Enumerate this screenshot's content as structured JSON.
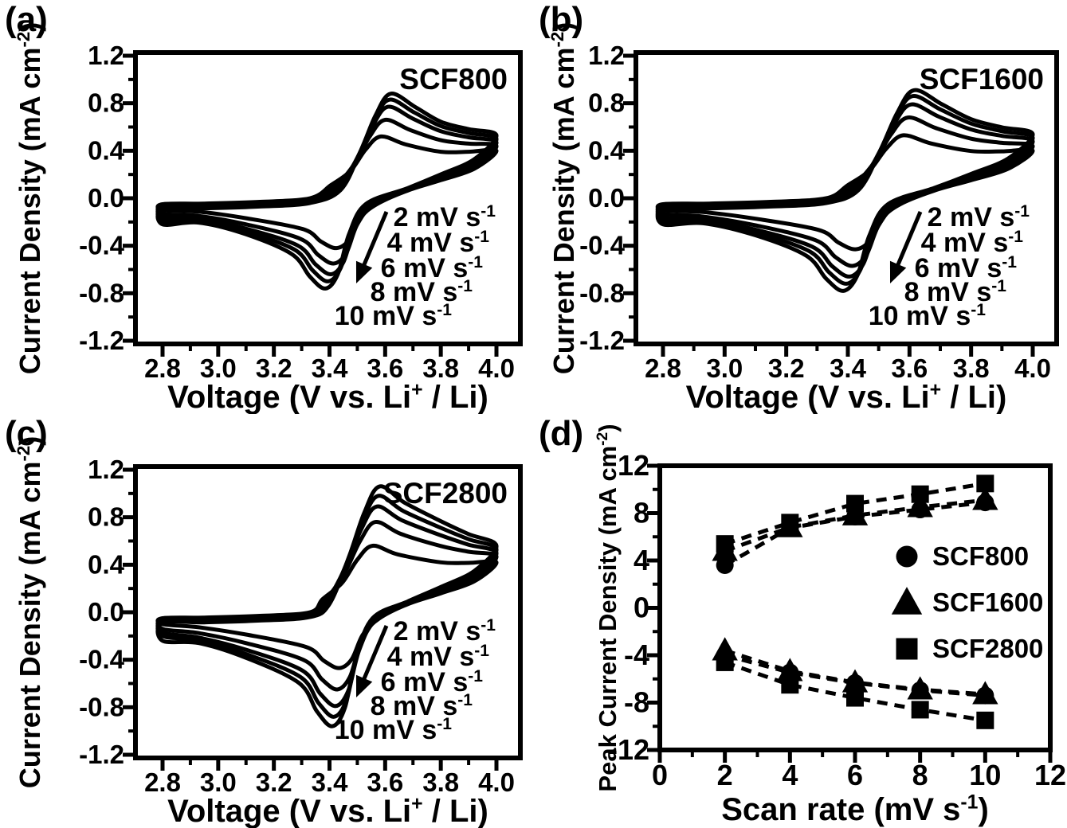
{
  "figure": {
    "background": "#ffffff",
    "ink": "#000000",
    "description": "Cyclic voltammetry of SCF samples and peak current density versus scan rate"
  },
  "chart_data": [
    {
      "type": "line",
      "subtype": "cyclic-voltammetry",
      "panel": "a",
      "panel_label": "(a)",
      "sample": "SCF800",
      "xlabel": "Voltage (V vs. Li^+^ / Li)",
      "ylabel": "Current Density (mA cm^-2^)",
      "xlim": [
        2.8,
        4.0
      ],
      "ylim": [
        -1.2,
        1.2
      ],
      "xticks": [
        2.8,
        3.0,
        3.2,
        3.4,
        3.6,
        3.8,
        4.0
      ],
      "yticks": [
        1.2,
        0.8,
        0.4,
        0.0,
        -0.4,
        -0.8,
        -1.2
      ],
      "grid": false,
      "scan_rates_mV_s": [
        2,
        4,
        6,
        8,
        10
      ],
      "scan_rate_labels": [
        "2 mV s^-1^",
        "4 mV s^-1^",
        "6 mV s^-1^",
        "8 mV s^-1^",
        "10 mV s^-1^"
      ],
      "curves": [
        {
          "scan_rate_mV_s": 2,
          "anodic_peak_V": 3.585,
          "anodic_peak_mA_cm2": 0.52,
          "cathodic_peak_V": 3.425,
          "cathodic_peak_mA_cm2": -0.42,
          "start_mA_cm2": -0.05,
          "end_mA_cm2": 0.4,
          "return_end_mA_cm2": -0.1
        },
        {
          "scan_rate_mV_s": 4,
          "anodic_peak_V": 3.6,
          "anodic_peak_mA_cm2": 0.66,
          "cathodic_peak_V": 3.415,
          "cathodic_peak_mA_cm2": -0.55,
          "start_mA_cm2": -0.06,
          "end_mA_cm2": 0.44,
          "return_end_mA_cm2": -0.13
        },
        {
          "scan_rate_mV_s": 6,
          "anodic_peak_V": 3.61,
          "anodic_peak_mA_cm2": 0.77,
          "cathodic_peak_V": 3.405,
          "cathodic_peak_mA_cm2": -0.64,
          "start_mA_cm2": -0.07,
          "end_mA_cm2": 0.47,
          "return_end_mA_cm2": -0.16
        },
        {
          "scan_rate_mV_s": 8,
          "anodic_peak_V": 3.615,
          "anodic_peak_mA_cm2": 0.83,
          "cathodic_peak_V": 3.395,
          "cathodic_peak_mA_cm2": -0.7,
          "start_mA_cm2": -0.08,
          "end_mA_cm2": 0.5,
          "return_end_mA_cm2": -0.19
        },
        {
          "scan_rate_mV_s": 10,
          "anodic_peak_V": 3.62,
          "anodic_peak_mA_cm2": 0.88,
          "cathodic_peak_V": 3.385,
          "cathodic_peak_mA_cm2": -0.76,
          "start_mA_cm2": -0.09,
          "end_mA_cm2": 0.53,
          "return_end_mA_cm2": -0.22
        }
      ]
    },
    {
      "type": "line",
      "subtype": "cyclic-voltammetry",
      "panel": "b",
      "panel_label": "(b)",
      "sample": "SCF1600",
      "xlabel": "Voltage (V vs. Li^+^ / Li)",
      "ylabel": "Current Density (mA cm^-2^)",
      "xlim": [
        2.8,
        4.0
      ],
      "ylim": [
        -1.2,
        1.2
      ],
      "xticks": [
        2.8,
        3.0,
        3.2,
        3.4,
        3.6,
        3.8,
        4.0
      ],
      "yticks": [
        1.2,
        0.8,
        0.4,
        0.0,
        -0.4,
        -0.8,
        -1.2
      ],
      "grid": false,
      "scan_rates_mV_s": [
        2,
        4,
        6,
        8,
        10
      ],
      "scan_rate_labels": [
        "2 mV s^-1^",
        "4 mV s^-1^",
        "6 mV s^-1^",
        "8 mV s^-1^",
        "10 mV s^-1^"
      ],
      "curves": [
        {
          "scan_rate_mV_s": 2,
          "anodic_peak_V": 3.58,
          "anodic_peak_mA_cm2": 0.53,
          "cathodic_peak_V": 3.425,
          "cathodic_peak_mA_cm2": -0.43,
          "start_mA_cm2": -0.05,
          "end_mA_cm2": 0.4,
          "return_end_mA_cm2": -0.1
        },
        {
          "scan_rate_mV_s": 4,
          "anodic_peak_V": 3.595,
          "anodic_peak_mA_cm2": 0.68,
          "cathodic_peak_V": 3.415,
          "cathodic_peak_mA_cm2": -0.57,
          "start_mA_cm2": -0.06,
          "end_mA_cm2": 0.44,
          "return_end_mA_cm2": -0.13
        },
        {
          "scan_rate_mV_s": 6,
          "anodic_peak_V": 3.605,
          "anodic_peak_mA_cm2": 0.79,
          "cathodic_peak_V": 3.405,
          "cathodic_peak_mA_cm2": -0.66,
          "start_mA_cm2": -0.07,
          "end_mA_cm2": 0.48,
          "return_end_mA_cm2": -0.16
        },
        {
          "scan_rate_mV_s": 8,
          "anodic_peak_V": 3.61,
          "anodic_peak_mA_cm2": 0.86,
          "cathodic_peak_V": 3.395,
          "cathodic_peak_mA_cm2": -0.72,
          "start_mA_cm2": -0.08,
          "end_mA_cm2": 0.51,
          "return_end_mA_cm2": -0.19
        },
        {
          "scan_rate_mV_s": 10,
          "anodic_peak_V": 3.615,
          "anodic_peak_mA_cm2": 0.91,
          "cathodic_peak_V": 3.385,
          "cathodic_peak_mA_cm2": -0.78,
          "start_mA_cm2": -0.09,
          "end_mA_cm2": 0.54,
          "return_end_mA_cm2": -0.22
        }
      ]
    },
    {
      "type": "line",
      "subtype": "cyclic-voltammetry",
      "panel": "c",
      "panel_label": "(c)",
      "sample": "SCF2800",
      "xlabel": "Voltage (V vs. Li^+^ / Li)",
      "ylabel": "Current Density (mA cm^-2^)",
      "xlim": [
        2.8,
        4.0
      ],
      "ylim": [
        -1.2,
        1.2
      ],
      "xticks": [
        2.8,
        3.0,
        3.2,
        3.4,
        3.6,
        3.8,
        4.0
      ],
      "yticks": [
        1.2,
        0.8,
        0.4,
        0.0,
        -0.4,
        -0.8,
        -1.2
      ],
      "grid": false,
      "scan_rates_mV_s": [
        2,
        4,
        6,
        8,
        10
      ],
      "scan_rate_labels": [
        "2 mV s^-1^",
        "4 mV s^-1^",
        "6 mV s^-1^",
        "8 mV s^-1^",
        "10 mV s^-1^"
      ],
      "curves": [
        {
          "scan_rate_mV_s": 2,
          "anodic_peak_V": 3.555,
          "anodic_peak_mA_cm2": 0.56,
          "cathodic_peak_V": 3.435,
          "cathodic_peak_mA_cm2": -0.47,
          "start_mA_cm2": -0.05,
          "end_mA_cm2": 0.42,
          "return_end_mA_cm2": -0.1
        },
        {
          "scan_rate_mV_s": 4,
          "anodic_peak_V": 3.565,
          "anodic_peak_mA_cm2": 0.76,
          "cathodic_peak_V": 3.428,
          "cathodic_peak_mA_cm2": -0.65,
          "start_mA_cm2": -0.06,
          "end_mA_cm2": 0.47,
          "return_end_mA_cm2": -0.14
        },
        {
          "scan_rate_mV_s": 6,
          "anodic_peak_V": 3.57,
          "anodic_peak_mA_cm2": 0.89,
          "cathodic_peak_V": 3.422,
          "cathodic_peak_mA_cm2": -0.79,
          "start_mA_cm2": -0.07,
          "end_mA_cm2": 0.5,
          "return_end_mA_cm2": -0.17
        },
        {
          "scan_rate_mV_s": 8,
          "anodic_peak_V": 3.575,
          "anodic_peak_mA_cm2": 0.98,
          "cathodic_peak_V": 3.416,
          "cathodic_peak_mA_cm2": -0.88,
          "start_mA_cm2": -0.08,
          "end_mA_cm2": 0.53,
          "return_end_mA_cm2": -0.2
        },
        {
          "scan_rate_mV_s": 10,
          "anodic_peak_V": 3.58,
          "anodic_peak_mA_cm2": 1.06,
          "cathodic_peak_V": 3.41,
          "cathodic_peak_mA_cm2": -0.96,
          "start_mA_cm2": -0.09,
          "end_mA_cm2": 0.56,
          "return_end_mA_cm2": -0.24
        }
      ]
    },
    {
      "type": "scatter",
      "panel": "d",
      "panel_label": "(d)",
      "xlabel": "Scan rate (mV s^-1^)",
      "ylabel": "Peak Current Density (mA cm^-2^)",
      "xlim": [
        0,
        12
      ],
      "ylim": [
        -12,
        12
      ],
      "xticks": [
        0,
        2,
        4,
        6,
        8,
        10,
        12
      ],
      "yticks": [
        12,
        8,
        4,
        0,
        -4,
        -8,
        -12
      ],
      "grid": false,
      "x": [
        2,
        4,
        6,
        8,
        10
      ],
      "series": [
        {
          "name": "SCF800",
          "marker": "circle",
          "anodic": [
            3.6,
            6.75,
            7.7,
            8.3,
            8.9
          ],
          "cathodic": [
            -4.0,
            -5.45,
            -6.35,
            -6.95,
            -7.4
          ]
        },
        {
          "name": "SCF1600",
          "marker": "triangle",
          "anodic": [
            4.8,
            6.8,
            7.8,
            8.5,
            9.1
          ],
          "cathodic": [
            -3.6,
            -5.35,
            -6.3,
            -6.9,
            -7.3
          ]
        },
        {
          "name": "SCF2800",
          "marker": "square",
          "anodic": [
            5.4,
            7.2,
            8.8,
            9.6,
            10.5
          ],
          "cathodic": [
            -4.6,
            -6.5,
            -7.6,
            -8.6,
            -9.5
          ]
        }
      ],
      "legend": [
        {
          "marker": "circle",
          "label": "SCF800"
        },
        {
          "marker": "triangle",
          "label": "SCF1600"
        },
        {
          "marker": "square",
          "label": "SCF2800"
        }
      ],
      "legend_position": "middle-right"
    }
  ]
}
